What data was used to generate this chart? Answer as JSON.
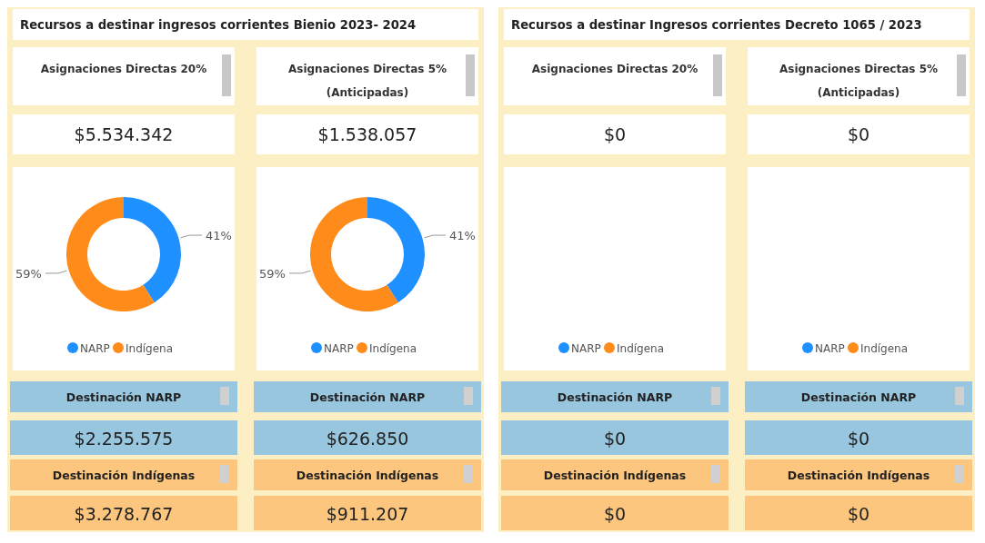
{
  "chart_data": [
    {
      "type": "other",
      "title": "Recursos a destinar ingresos corrientes Bienio 2023- 2024"
    },
    {
      "type": "donut",
      "title": "Asignaciones Directas 20%",
      "subtitle": "$5.534.342",
      "categories": [
        "NARP",
        "Indígena"
      ],
      "values": [
        41,
        59
      ],
      "value_labels": [
        "41%",
        "59%"
      ],
      "colors": [
        "#1e90ff",
        "#ff8c1a"
      ],
      "legend": "bottom",
      "annotations": [
        "Destinación NARP",
        "$2.255.575",
        "Destinación Indígenas",
        "$3.278.767"
      ]
    },
    {
      "type": "donut",
      "title": "Asignaciones Directas 5%\n(Anticipadas)",
      "subtitle": "$1.538.057",
      "categories": [
        "NARP",
        "Indígena"
      ],
      "values": [
        41,
        59
      ],
      "value_labels": [
        "41%",
        "59%"
      ],
      "colors": [
        "#1e90ff",
        "#ff8c1a"
      ],
      "legend": "bottom",
      "annotations": [
        "Destinación NARP",
        "$626.850",
        "Destinación Indígenas",
        "$911.207"
      ]
    },
    {
      "type": "other",
      "title": "Recursos a destinar Ingresos corrientes Decreto 1065 / 2023"
    },
    {
      "type": "other",
      "title": "Asignaciones Directas 20%",
      "subtitle": "$0",
      "categories": [
        "NARP",
        "Indígena"
      ],
      "colors": [
        "#1e90ff",
        "#ff8c1a"
      ],
      "annotations": [
        "Destinación NARP",
        "$0",
        "Destinación Indígenas",
        "$0"
      ]
    },
    {
      "type": "other",
      "title": "Asignaciones Directas 5%\n(Anticipadas)",
      "subtitle": "$0",
      "categories": [
        "NARP",
        "Indígena"
      ],
      "colors": [
        "#1e90ff",
        "#ff8c1a"
      ],
      "annotations": [
        "Destinación NARP",
        "$0",
        "Destinación Indígenas",
        "$0"
      ]
    }
  ]
}
